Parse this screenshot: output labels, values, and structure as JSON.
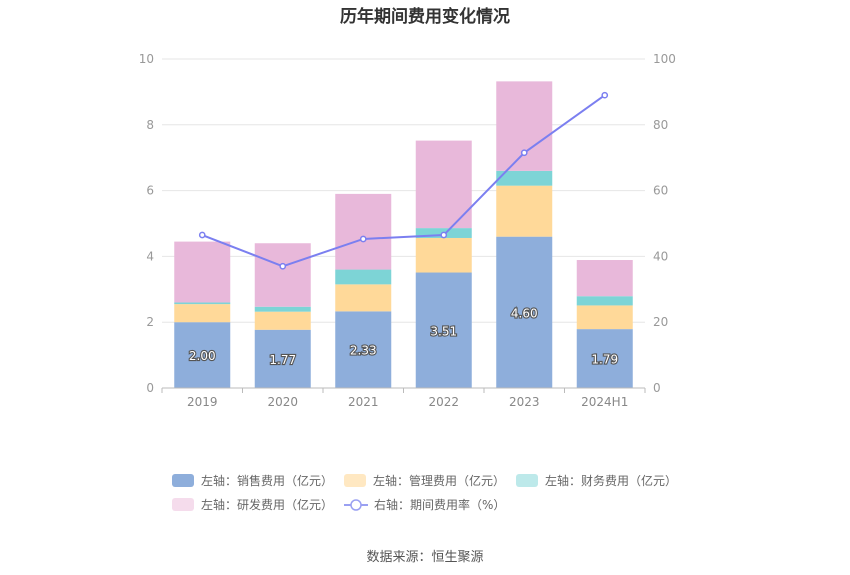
{
  "chart_data": {
    "type": "bar",
    "title": "历年期间费用变化情况",
    "categories": [
      "2019",
      "2020",
      "2021",
      "2022",
      "2023",
      "2024H1"
    ],
    "stacked": true,
    "y_left": {
      "min": 0,
      "max": 10,
      "ticks": [
        "0",
        "2",
        "4",
        "6",
        "8",
        "10"
      ]
    },
    "y_right": {
      "min": 0,
      "max": 100,
      "ticks": [
        "0",
        "20",
        "40",
        "60",
        "80",
        "100"
      ]
    },
    "series": [
      {
        "name": "左轴：销售费用（亿元）",
        "axis": "left",
        "kind": "bar",
        "color": "#8eaedb",
        "values": [
          2.0,
          1.77,
          2.33,
          3.51,
          4.6,
          1.79
        ],
        "labels": [
          "2.00",
          "1.77",
          "2.33",
          "3.51",
          "4.60",
          "1.79"
        ]
      },
      {
        "name": "左轴：管理费用（亿元）",
        "axis": "left",
        "kind": "bar",
        "color": "#ffd999",
        "values": [
          0.55,
          0.55,
          0.82,
          1.05,
          1.55,
          0.72
        ]
      },
      {
        "name": "左轴：财务费用（亿元）",
        "axis": "left",
        "kind": "bar",
        "color": "#7dd4d6",
        "values": [
          0.05,
          0.15,
          0.45,
          0.3,
          0.45,
          0.28
        ]
      },
      {
        "name": "左轴：研发费用（亿元）",
        "axis": "left",
        "kind": "bar",
        "color": "#e8b8da",
        "values": [
          1.85,
          1.93,
          2.3,
          2.66,
          2.72,
          1.1
        ]
      },
      {
        "name": "右轴：期间费用率（%）",
        "axis": "right",
        "kind": "line",
        "color": "#7b7ff0",
        "values": [
          46.5,
          37.0,
          45.3,
          46.5,
          71.5,
          89.0
        ]
      }
    ],
    "legend_position": "bottom",
    "grid": true,
    "source": "数据来源：恒生聚源"
  }
}
